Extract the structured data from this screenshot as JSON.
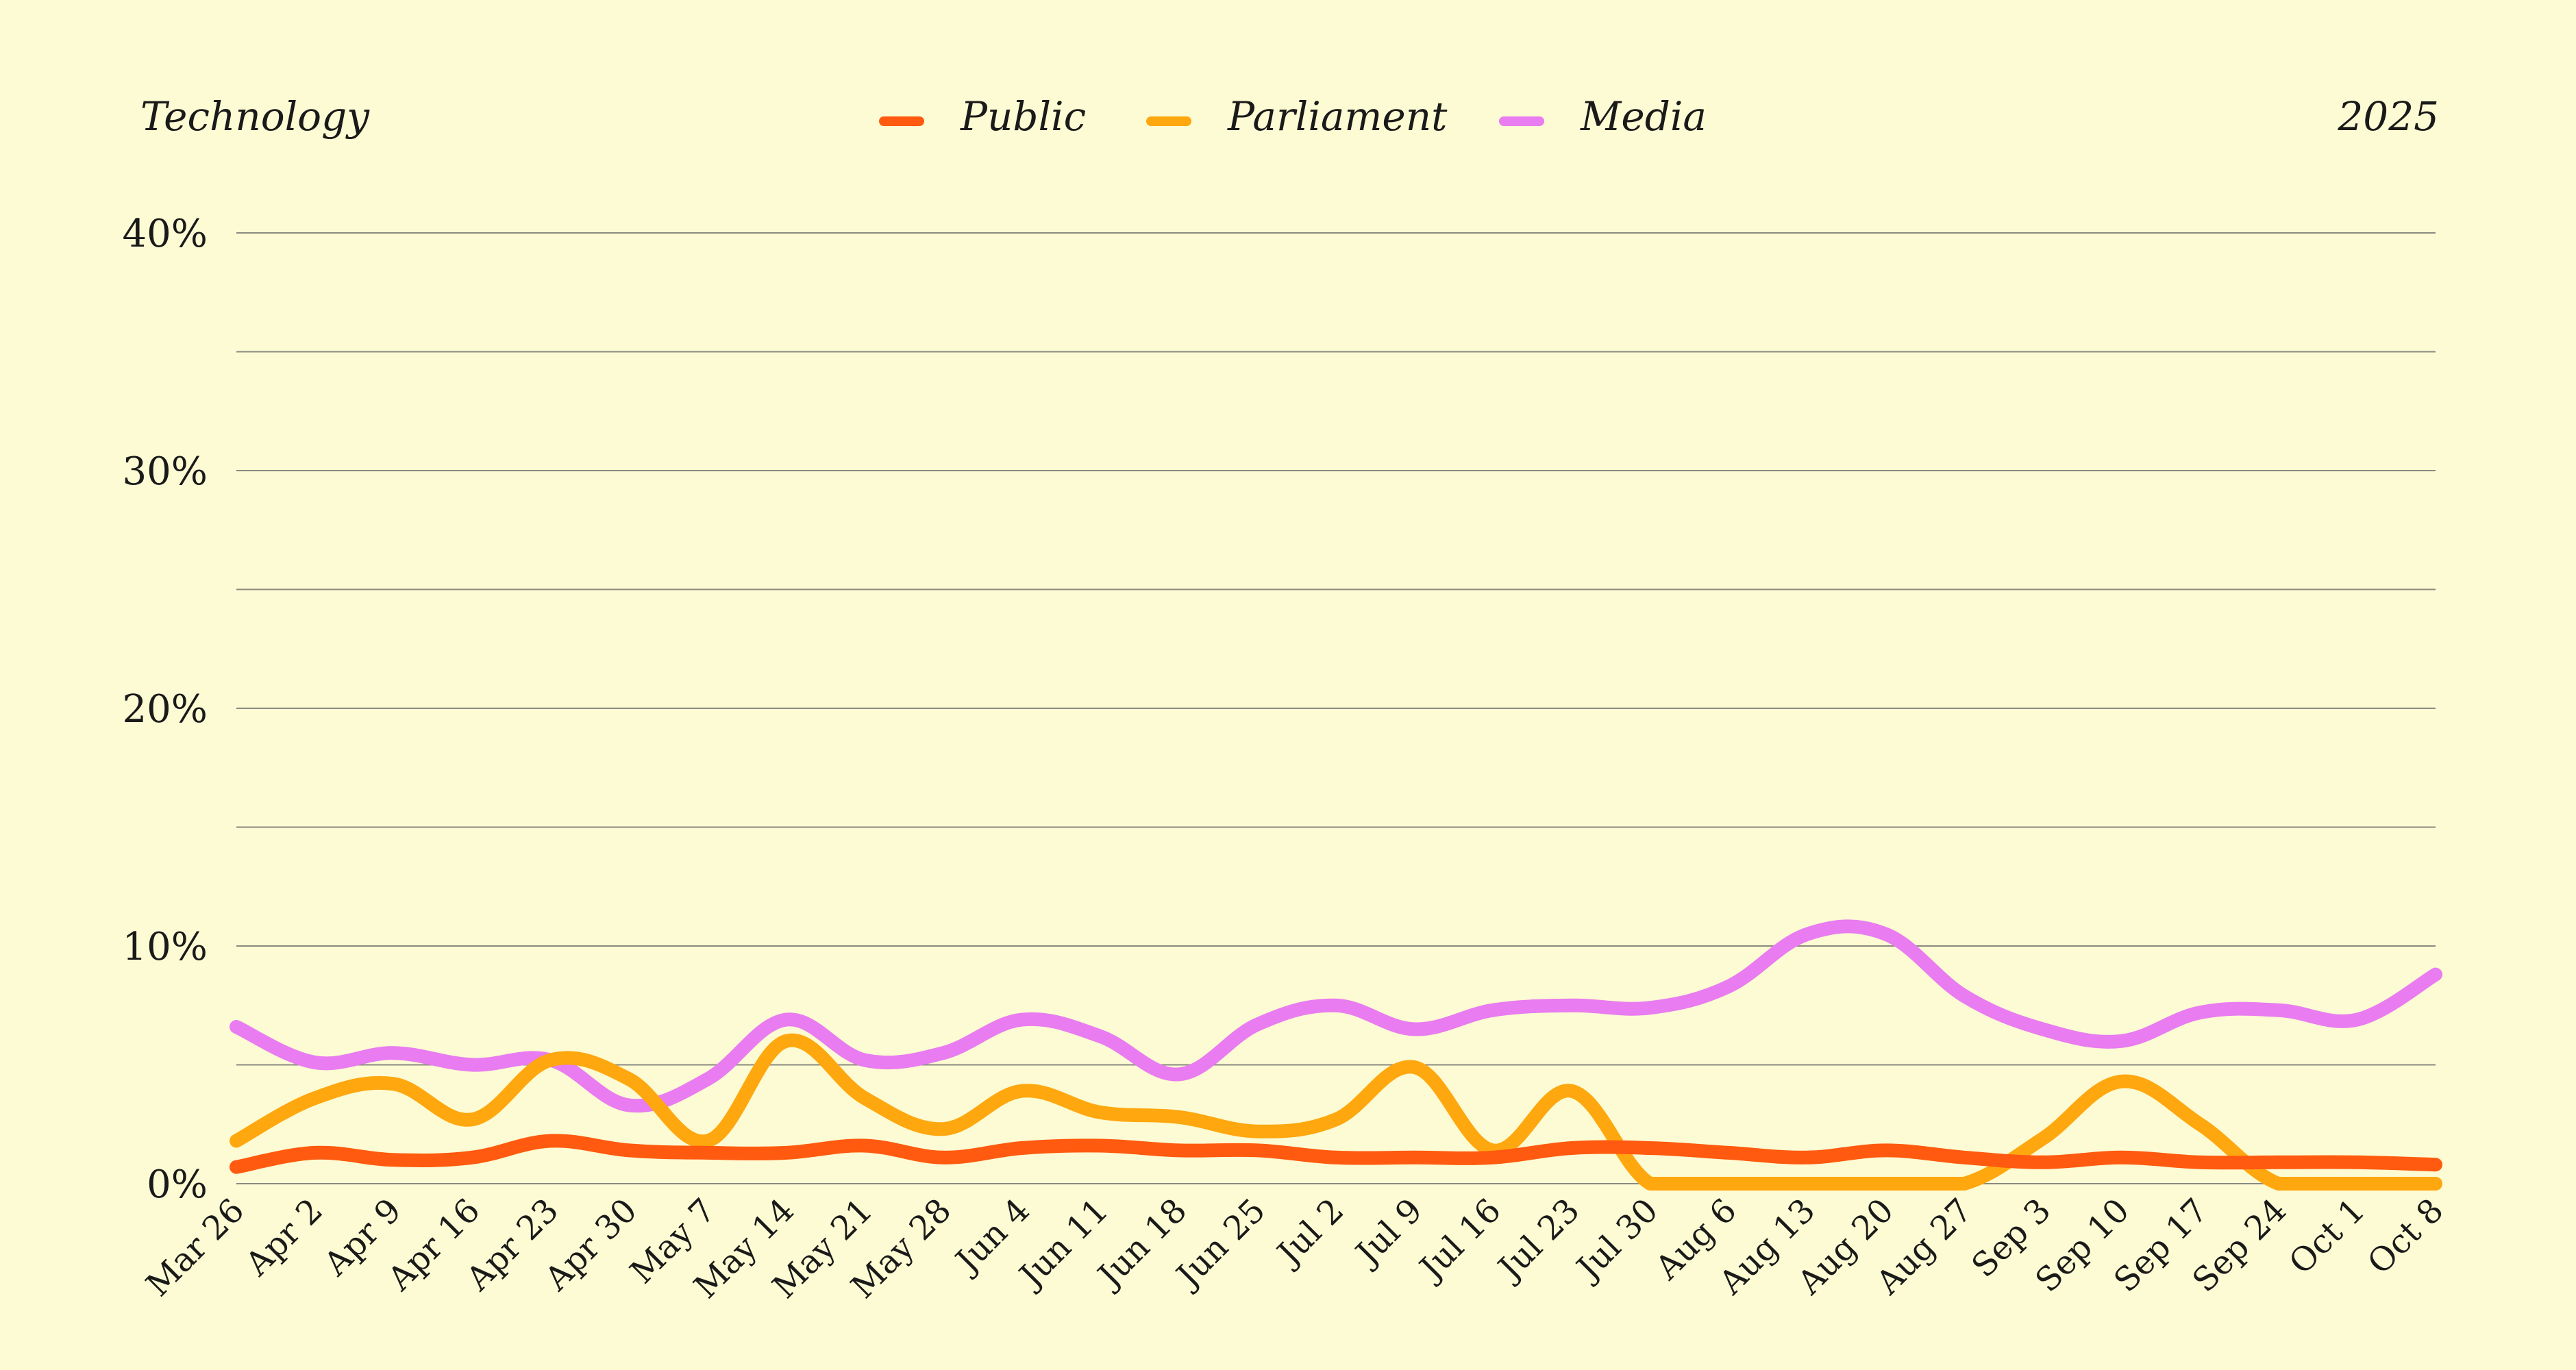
{
  "chart_data": {
    "type": "line",
    "title": "Technology",
    "year": "2025",
    "ylim": [
      0,
      40
    ],
    "ytick_values": [
      0,
      10,
      20,
      30,
      40
    ],
    "ytick_labels": [
      "0%",
      "10%",
      "20%",
      "30%",
      "40%"
    ],
    "grid": true,
    "legend_position": "top-center",
    "x": [
      "Mar 26",
      "Apr 2",
      "Apr 9",
      "Apr 16",
      "Apr 23",
      "Apr 30",
      "May 7",
      "May 14",
      "May 21",
      "May 28",
      "Jun 4",
      "Jun 11",
      "Jun 18",
      "Jun 25",
      "Jul 2",
      "Jul 9",
      "Jul 16",
      "Jul 23",
      "Jul 30",
      "Aug 6",
      "Aug 13",
      "Aug 20",
      "Aug 27",
      "Sep 3",
      "Sep 10",
      "Sep 17",
      "Sep 24",
      "Oct 1",
      "Oct 8"
    ],
    "series": [
      {
        "name": "Public",
        "color": "#ff5a0f",
        "values": [
          0.7,
          1.3,
          1.0,
          1.1,
          1.8,
          1.4,
          1.3,
          1.3,
          1.6,
          1.1,
          1.5,
          1.6,
          1.4,
          1.4,
          1.1,
          1.1,
          1.1,
          1.5,
          1.5,
          1.3,
          1.1,
          1.4,
          1.1,
          0.9,
          1.1,
          0.9,
          0.9,
          0.9,
          0.8
        ]
      },
      {
        "name": "Parliament",
        "color": "#ffa70f",
        "values": [
          1.8,
          3.6,
          4.2,
          2.7,
          5.2,
          4.4,
          1.8,
          6.0,
          3.6,
          2.3,
          3.9,
          3.0,
          2.8,
          2.2,
          2.7,
          4.9,
          1.4,
          3.9,
          0.0,
          0.0,
          0.0,
          0.0,
          0.0,
          1.9,
          4.3,
          2.5,
          0.0,
          0.0,
          0.0
        ]
      },
      {
        "name": "Media",
        "color": "#e87cf0",
        "values": [
          6.6,
          5.1,
          5.5,
          5.0,
          5.2,
          3.3,
          4.4,
          6.9,
          5.2,
          5.5,
          6.9,
          6.2,
          4.6,
          6.7,
          7.5,
          6.5,
          7.3,
          7.5,
          7.4,
          8.3,
          10.5,
          10.5,
          7.9,
          6.5,
          6.0,
          7.2,
          7.3,
          6.9,
          8.8
        ]
      }
    ]
  }
}
